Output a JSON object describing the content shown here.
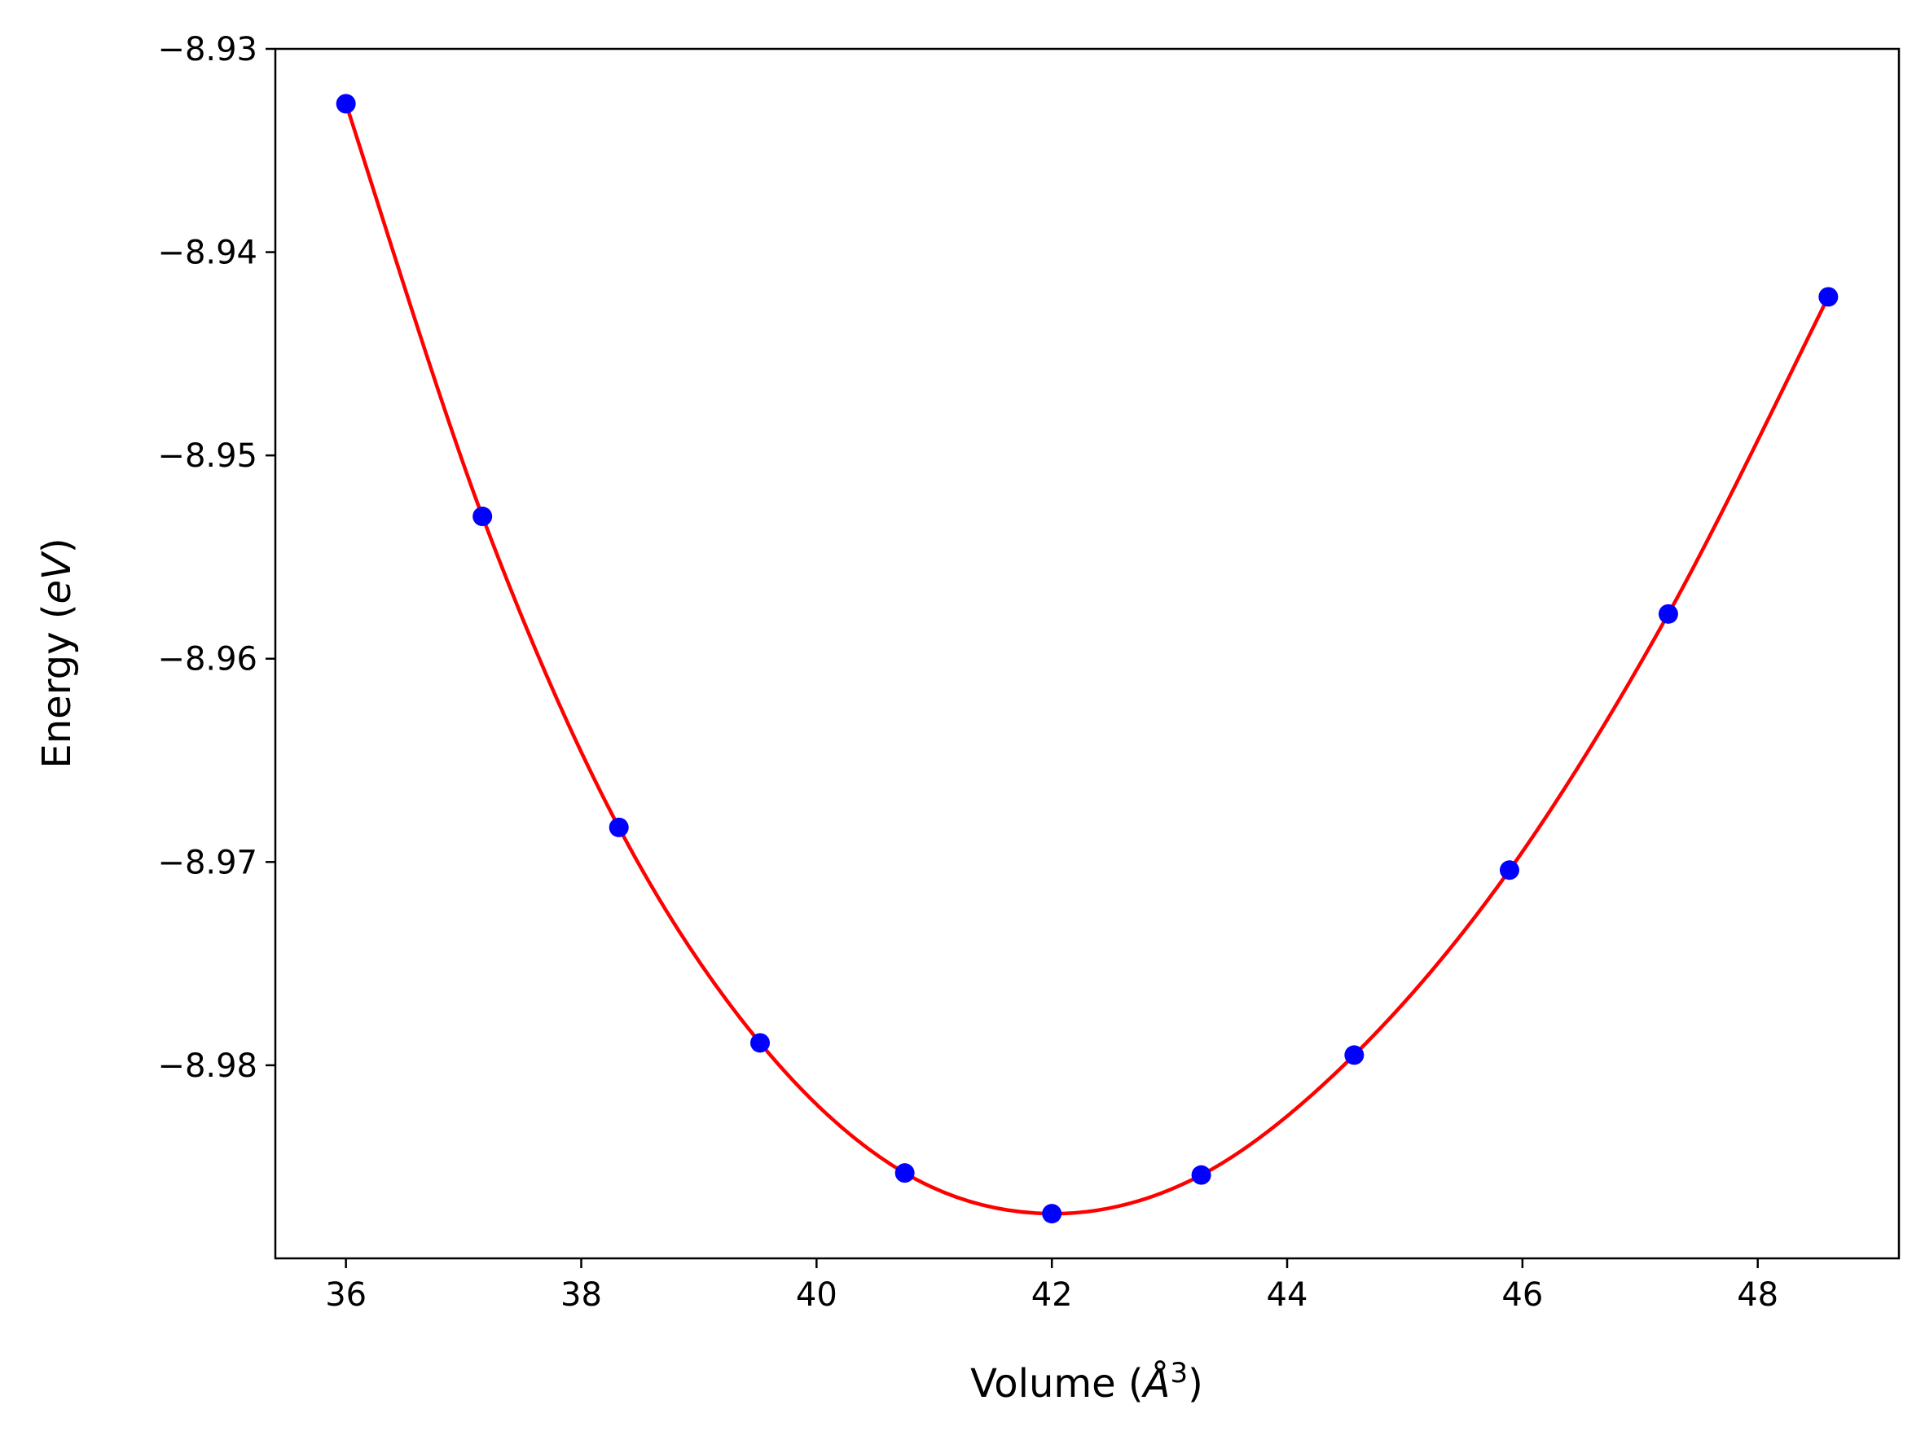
{
  "chart_data": {
    "type": "scatter",
    "title": "",
    "xlabel": {
      "prefix": "Volume (",
      "unit": "Å",
      "power": "3",
      "suffix": ")"
    },
    "ylabel": {
      "prefix": "Energy (",
      "unit": "eV",
      "suffix": ")"
    },
    "xlim": [
      35.4,
      49.2
    ],
    "ylim": [
      -8.9895,
      -8.93
    ],
    "xticks": [
      36,
      38,
      40,
      42,
      44,
      46,
      48
    ],
    "xtick_labels": [
      "36",
      "38",
      "40",
      "42",
      "44",
      "46",
      "48"
    ],
    "yticks": [
      -8.93,
      -8.94,
      -8.95,
      -8.96,
      -8.97,
      -8.98
    ],
    "ytick_labels": [
      "−8.93",
      "−8.94",
      "−8.95",
      "−8.96",
      "−8.97",
      "−8.98"
    ],
    "grid": false,
    "series": [
      {
        "kind": "points",
        "color": "#0000ff",
        "x": [
          36.0,
          37.16,
          38.32,
          39.52,
          40.75,
          42.0,
          43.27,
          44.57,
          45.89,
          47.24,
          48.6
        ],
        "y": [
          -8.9327,
          -8.953,
          -8.9683,
          -8.9789,
          -8.9853,
          -8.9873,
          -8.9854,
          -8.9795,
          -8.9704,
          -8.9578,
          -8.9422
        ]
      },
      {
        "kind": "fit-curve",
        "color": "#ff0000"
      }
    ]
  }
}
